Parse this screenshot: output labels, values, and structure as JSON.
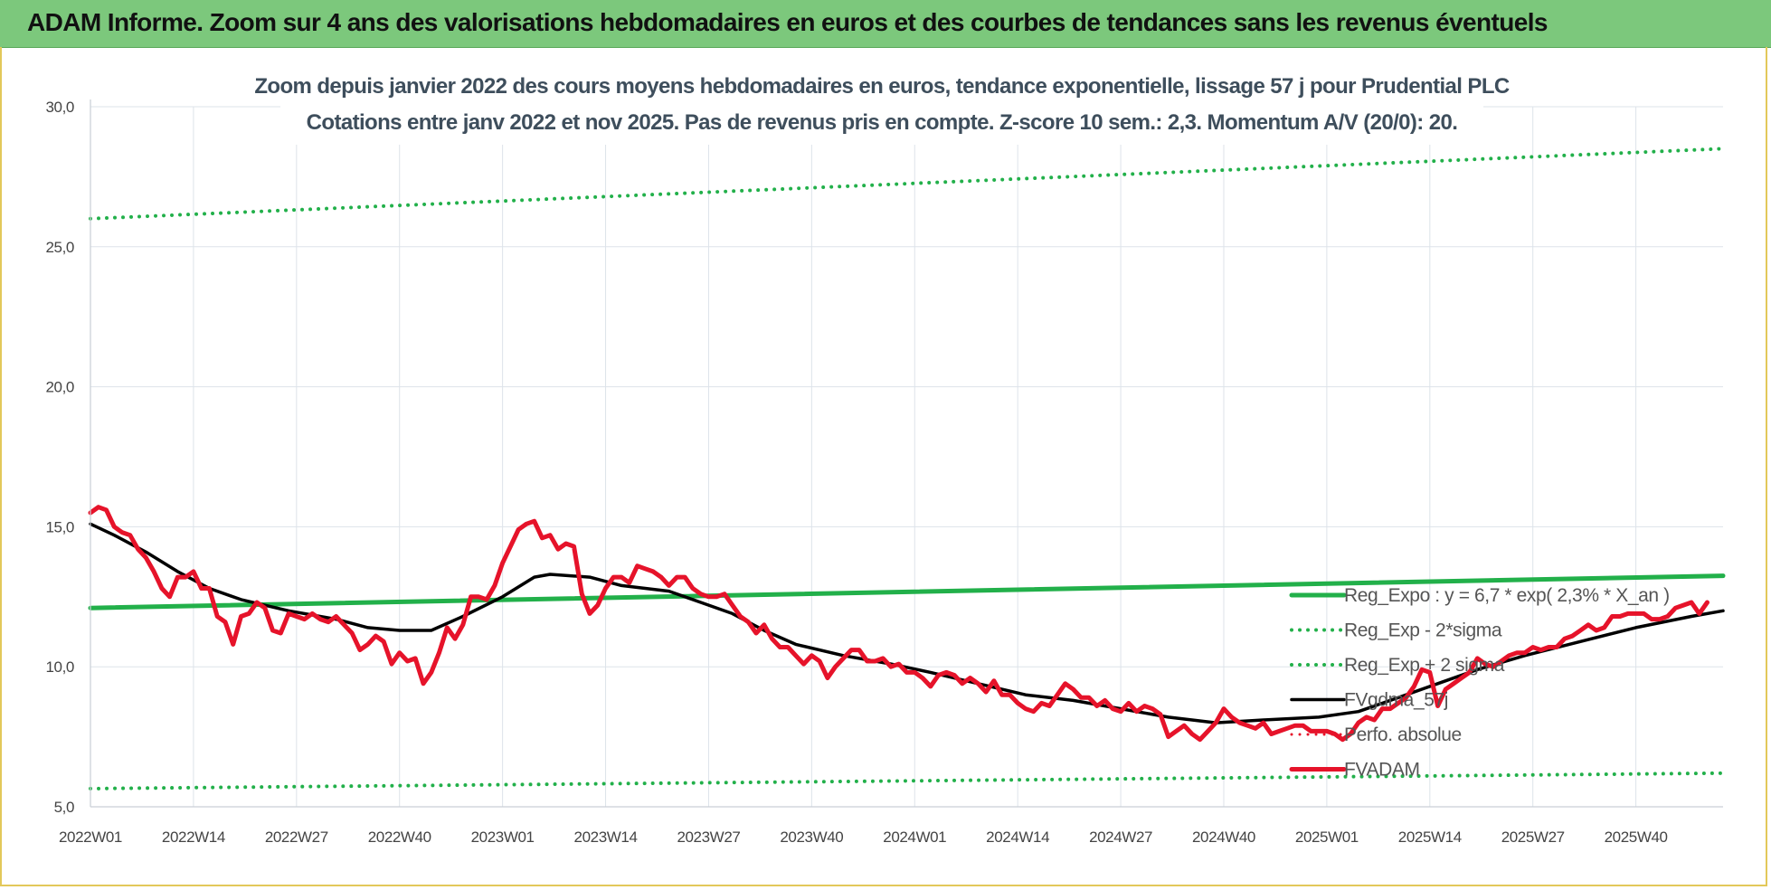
{
  "banner": {
    "title": "ADAM Informe. Zoom sur 4 ans des valorisations hebdomadaires en euros et des courbes de tendances sans les revenus éventuels"
  },
  "chart_data": {
    "type": "line",
    "title": "",
    "subtitle_line1": "Zoom depuis janvier 2022 des cours moyens hebdomadaires en euros, tendance exponentielle, lissage 57 j pour Prudential PLC",
    "subtitle_line2": "Cotations entre janv 2022 et nov 2025. Pas de revenus pris en compte. Z-score 10 sem.: 2,3. Momentum A/V (20/0): 20.",
    "xlabel": "",
    "ylabel": "",
    "ylim": [
      5,
      30
    ],
    "yticks": [
      "30,0",
      "25,0",
      "20,0",
      "15,0",
      "10,0",
      "5,0"
    ],
    "ytick_values": [
      30,
      25,
      20,
      15,
      10,
      5
    ],
    "x_start": "2022W01",
    "x_end": "2025W51",
    "xticks": [
      "2022W01",
      "2022W14",
      "2022W27",
      "2022W40",
      "2023W01",
      "2023W14",
      "2023W27",
      "2023W40",
      "2024W01",
      "2024W14",
      "2024W27",
      "2024W40",
      "2025W01",
      "2025W14",
      "2025W27",
      "2025W40"
    ],
    "grid": true,
    "legend_position": "right",
    "series": [
      {
        "name": "Reg_Expo : y = 6,7 * exp( 2,3% * X_an )",
        "color": "#22b04a",
        "style": "solid",
        "width": 5,
        "points": [
          [
            "2022W01",
            12.1
          ],
          [
            "2025W51",
            13.25
          ]
        ]
      },
      {
        "name": "Reg_Exp - 2*sigma",
        "color": "#22b04a",
        "style": "dotted",
        "width": 4,
        "points": [
          [
            "2022W01",
            5.65
          ],
          [
            "2025W51",
            6.2
          ]
        ]
      },
      {
        "name": "Reg_Exp + 2 sigma",
        "color": "#22b04a",
        "style": "dotted",
        "width": 4,
        "points": [
          [
            "2022W01",
            26.0
          ],
          [
            "2025W51",
            28.5
          ]
        ]
      },
      {
        "name": "FVgdma_57j",
        "color": "#000000",
        "style": "solid",
        "width": 3.5,
        "points": [
          [
            "2022W01",
            15.1
          ],
          [
            "2022W04",
            14.7
          ],
          [
            "2022W08",
            14.1
          ],
          [
            "2022W12",
            13.4
          ],
          [
            "2022W16",
            12.8
          ],
          [
            "2022W20",
            12.4
          ],
          [
            "2022W26",
            12.0
          ],
          [
            "2022W32",
            11.7
          ],
          [
            "2022W36",
            11.4
          ],
          [
            "2022W40",
            11.3
          ],
          [
            "2022W44",
            11.3
          ],
          [
            "2022W48",
            11.8
          ],
          [
            "2023W01",
            12.5
          ],
          [
            "2023W05",
            13.2
          ],
          [
            "2023W07",
            13.3
          ],
          [
            "2023W12",
            13.2
          ],
          [
            "2023W16",
            12.9
          ],
          [
            "2023W22",
            12.7
          ],
          [
            "2023W26",
            12.3
          ],
          [
            "2023W30",
            11.9
          ],
          [
            "2023W34",
            11.3
          ],
          [
            "2023W38",
            10.8
          ],
          [
            "2023W44",
            10.4
          ],
          [
            "2023W50",
            10.1
          ],
          [
            "2024W03",
            9.8
          ],
          [
            "2024W09",
            9.4
          ],
          [
            "2024W15",
            9.0
          ],
          [
            "2024W21",
            8.8
          ],
          [
            "2024W27",
            8.5
          ],
          [
            "2024W33",
            8.2
          ],
          [
            "2024W39",
            8.0
          ],
          [
            "2024W45",
            8.1
          ],
          [
            "2024W52",
            8.2
          ],
          [
            "2025W05",
            8.4
          ],
          [
            "2025W10",
            8.9
          ],
          [
            "2025W15",
            9.4
          ],
          [
            "2025W20",
            9.9
          ],
          [
            "2025W26",
            10.4
          ],
          [
            "2025W33",
            10.9
          ],
          [
            "2025W40",
            11.4
          ],
          [
            "2025W47",
            11.8
          ],
          [
            "2025W51",
            12.0
          ]
        ]
      },
      {
        "name": "Perfo. absolue",
        "color": "#e6132a",
        "style": "dotted",
        "width": 3,
        "points": []
      },
      {
        "name": "FVADAM",
        "color": "#e6132a",
        "style": "solid",
        "width": 5,
        "points": [
          [
            "2022W01",
            15.5
          ],
          [
            "2022W02",
            15.7
          ],
          [
            "2022W03",
            15.6
          ],
          [
            "2022W04",
            15.0
          ],
          [
            "2022W05",
            14.8
          ],
          [
            "2022W06",
            14.7
          ],
          [
            "2022W07",
            14.2
          ],
          [
            "2022W08",
            13.9
          ],
          [
            "2022W09",
            13.4
          ],
          [
            "2022W10",
            12.8
          ],
          [
            "2022W11",
            12.5
          ],
          [
            "2022W12",
            13.2
          ],
          [
            "2022W13",
            13.2
          ],
          [
            "2022W14",
            13.4
          ],
          [
            "2022W15",
            12.8
          ],
          [
            "2022W16",
            12.8
          ],
          [
            "2022W17",
            11.8
          ],
          [
            "2022W18",
            11.6
          ],
          [
            "2022W19",
            10.8
          ],
          [
            "2022W20",
            11.8
          ],
          [
            "2022W21",
            11.9
          ],
          [
            "2022W22",
            12.3
          ],
          [
            "2022W23",
            12.1
          ],
          [
            "2022W24",
            11.3
          ],
          [
            "2022W25",
            11.2
          ],
          [
            "2022W26",
            11.9
          ],
          [
            "2022W27",
            11.8
          ],
          [
            "2022W28",
            11.7
          ],
          [
            "2022W29",
            11.9
          ],
          [
            "2022W30",
            11.7
          ],
          [
            "2022W31",
            11.6
          ],
          [
            "2022W32",
            11.8
          ],
          [
            "2022W33",
            11.5
          ],
          [
            "2022W34",
            11.2
          ],
          [
            "2022W35",
            10.6
          ],
          [
            "2022W36",
            10.8
          ],
          [
            "2022W37",
            11.1
          ],
          [
            "2022W38",
            10.9
          ],
          [
            "2022W39",
            10.1
          ],
          [
            "2022W40",
            10.5
          ],
          [
            "2022W41",
            10.2
          ],
          [
            "2022W42",
            10.3
          ],
          [
            "2022W43",
            9.4
          ],
          [
            "2022W44",
            9.8
          ],
          [
            "2022W45",
            10.5
          ],
          [
            "2022W46",
            11.4
          ],
          [
            "2022W47",
            11.0
          ],
          [
            "2022W48",
            11.5
          ],
          [
            "2022W49",
            12.5
          ],
          [
            "2022W50",
            12.5
          ],
          [
            "2022W51",
            12.4
          ],
          [
            "2022W52",
            12.9
          ],
          [
            "2023W01",
            13.7
          ],
          [
            "2023W02",
            14.3
          ],
          [
            "2023W03",
            14.9
          ],
          [
            "2023W04",
            15.1
          ],
          [
            "2023W05",
            15.2
          ],
          [
            "2023W06",
            14.6
          ],
          [
            "2023W07",
            14.7
          ],
          [
            "2023W08",
            14.2
          ],
          [
            "2023W09",
            14.4
          ],
          [
            "2023W10",
            14.3
          ],
          [
            "2023W11",
            12.6
          ],
          [
            "2023W12",
            11.9
          ],
          [
            "2023W13",
            12.2
          ],
          [
            "2023W14",
            12.8
          ],
          [
            "2023W15",
            13.2
          ],
          [
            "2023W16",
            13.2
          ],
          [
            "2023W17",
            13.0
          ],
          [
            "2023W18",
            13.6
          ],
          [
            "2023W19",
            13.5
          ],
          [
            "2023W20",
            13.4
          ],
          [
            "2023W21",
            13.2
          ],
          [
            "2023W22",
            12.9
          ],
          [
            "2023W23",
            13.2
          ],
          [
            "2023W24",
            13.2
          ],
          [
            "2023W25",
            12.8
          ],
          [
            "2023W26",
            12.6
          ],
          [
            "2023W27",
            12.5
          ],
          [
            "2023W28",
            12.5
          ],
          [
            "2023W29",
            12.6
          ],
          [
            "2023W30",
            12.2
          ],
          [
            "2023W31",
            11.8
          ],
          [
            "2023W32",
            11.6
          ],
          [
            "2023W33",
            11.2
          ],
          [
            "2023W34",
            11.5
          ],
          [
            "2023W35",
            11.0
          ],
          [
            "2023W36",
            10.7
          ],
          [
            "2023W37",
            10.7
          ],
          [
            "2023W38",
            10.4
          ],
          [
            "2023W39",
            10.1
          ],
          [
            "2023W40",
            10.4
          ],
          [
            "2023W41",
            10.2
          ],
          [
            "2023W42",
            9.6
          ],
          [
            "2023W43",
            10.0
          ],
          [
            "2023W44",
            10.3
          ],
          [
            "2023W45",
            10.6
          ],
          [
            "2023W46",
            10.6
          ],
          [
            "2023W47",
            10.2
          ],
          [
            "2023W48",
            10.2
          ],
          [
            "2023W49",
            10.3
          ],
          [
            "2023W50",
            10.0
          ],
          [
            "2023W51",
            10.1
          ],
          [
            "2023W52",
            9.8
          ],
          [
            "2024W01",
            9.8
          ],
          [
            "2024W02",
            9.6
          ],
          [
            "2024W03",
            9.3
          ],
          [
            "2024W04",
            9.7
          ],
          [
            "2024W05",
            9.8
          ],
          [
            "2024W06",
            9.7
          ],
          [
            "2024W07",
            9.4
          ],
          [
            "2024W08",
            9.6
          ],
          [
            "2024W09",
            9.4
          ],
          [
            "2024W10",
            9.1
          ],
          [
            "2024W11",
            9.5
          ],
          [
            "2024W12",
            9.0
          ],
          [
            "2024W13",
            9.0
          ],
          [
            "2024W14",
            8.7
          ],
          [
            "2024W15",
            8.5
          ],
          [
            "2024W16",
            8.4
          ],
          [
            "2024W17",
            8.7
          ],
          [
            "2024W18",
            8.6
          ],
          [
            "2024W19",
            9.0
          ],
          [
            "2024W20",
            9.4
          ],
          [
            "2024W21",
            9.2
          ],
          [
            "2024W22",
            8.9
          ],
          [
            "2024W23",
            8.9
          ],
          [
            "2024W24",
            8.6
          ],
          [
            "2024W25",
            8.8
          ],
          [
            "2024W26",
            8.5
          ],
          [
            "2024W27",
            8.4
          ],
          [
            "2024W28",
            8.7
          ],
          [
            "2024W29",
            8.4
          ],
          [
            "2024W30",
            8.6
          ],
          [
            "2024W31",
            8.5
          ],
          [
            "2024W32",
            8.3
          ],
          [
            "2024W33",
            7.5
          ],
          [
            "2024W34",
            7.7
          ],
          [
            "2024W35",
            7.9
          ],
          [
            "2024W36",
            7.6
          ],
          [
            "2024W37",
            7.4
          ],
          [
            "2024W38",
            7.7
          ],
          [
            "2024W39",
            8.0
          ],
          [
            "2024W40",
            8.5
          ],
          [
            "2024W41",
            8.2
          ],
          [
            "2024W42",
            8.0
          ],
          [
            "2024W43",
            7.9
          ],
          [
            "2024W44",
            7.8
          ],
          [
            "2024W45",
            8.0
          ],
          [
            "2024W46",
            7.6
          ],
          [
            "2024W47",
            7.7
          ],
          [
            "2024W48",
            7.8
          ],
          [
            "2024W49",
            7.9
          ],
          [
            "2024W50",
            7.9
          ],
          [
            "2024W51",
            7.7
          ],
          [
            "2024W52",
            7.7
          ],
          [
            "2025W01",
            7.7
          ],
          [
            "2025W02",
            7.6
          ],
          [
            "2025W03",
            7.4
          ],
          [
            "2025W04",
            7.6
          ],
          [
            "2025W05",
            8.0
          ],
          [
            "2025W06",
            8.2
          ],
          [
            "2025W07",
            8.1
          ],
          [
            "2025W08",
            8.5
          ],
          [
            "2025W09",
            8.5
          ],
          [
            "2025W10",
            8.7
          ],
          [
            "2025W11",
            8.9
          ],
          [
            "2025W12",
            9.3
          ],
          [
            "2025W13",
            9.9
          ],
          [
            "2025W14",
            9.8
          ],
          [
            "2025W15",
            8.6
          ],
          [
            "2025W16",
            9.2
          ],
          [
            "2025W17",
            9.4
          ],
          [
            "2025W18",
            9.6
          ],
          [
            "2025W19",
            9.8
          ],
          [
            "2025W20",
            10.3
          ],
          [
            "2025W21",
            10.1
          ],
          [
            "2025W22",
            10.0
          ],
          [
            "2025W23",
            10.2
          ],
          [
            "2025W24",
            10.4
          ],
          [
            "2025W25",
            10.5
          ],
          [
            "2025W26",
            10.5
          ],
          [
            "2025W27",
            10.7
          ],
          [
            "2025W28",
            10.6
          ],
          [
            "2025W29",
            10.7
          ],
          [
            "2025W30",
            10.7
          ],
          [
            "2025W31",
            11.0
          ],
          [
            "2025W32",
            11.1
          ],
          [
            "2025W33",
            11.3
          ],
          [
            "2025W34",
            11.5
          ],
          [
            "2025W35",
            11.3
          ],
          [
            "2025W36",
            11.4
          ],
          [
            "2025W37",
            11.8
          ],
          [
            "2025W38",
            11.8
          ],
          [
            "2025W39",
            11.9
          ],
          [
            "2025W40",
            11.9
          ],
          [
            "2025W41",
            11.9
          ],
          [
            "2025W42",
            11.7
          ],
          [
            "2025W43",
            11.7
          ],
          [
            "2025W44",
            11.8
          ],
          [
            "2025W45",
            12.1
          ],
          [
            "2025W46",
            12.2
          ],
          [
            "2025W47",
            12.3
          ],
          [
            "2025W48",
            11.9
          ],
          [
            "2025W49",
            12.3
          ]
        ]
      }
    ]
  }
}
